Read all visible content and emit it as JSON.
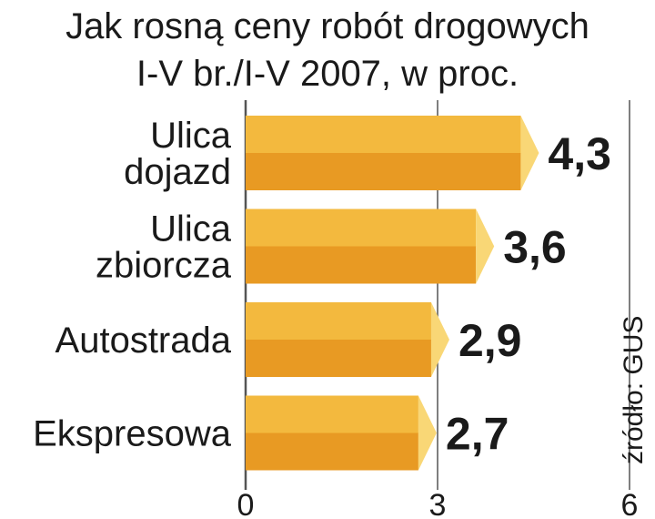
{
  "chart_data": {
    "type": "bar",
    "orientation": "horizontal",
    "title": "Jak rosną ceny robót drogowych",
    "subtitle": "I-V br./I-V 2007, w proc.",
    "categories": [
      [
        "Ulica",
        "dojazd"
      ],
      [
        "Ulica",
        "zbiorcza"
      ],
      [
        "Autostrada"
      ],
      [
        "Ekspresowa"
      ]
    ],
    "values": [
      4.3,
      3.6,
      2.9,
      2.7
    ],
    "value_labels": [
      "4,3",
      "3,6",
      "2,9",
      "2,7"
    ],
    "xlim": [
      0,
      6
    ],
    "xticks": [
      0,
      3,
      6
    ],
    "xtick_labels": [
      "0",
      "3",
      "6"
    ],
    "grid": true,
    "source": "źródło: GUS",
    "colors": {
      "bar_top": "#f3b93e",
      "bar_bottom": "#e89a23",
      "bar_tip": "#f9d776",
      "grid": "#555555"
    }
  }
}
